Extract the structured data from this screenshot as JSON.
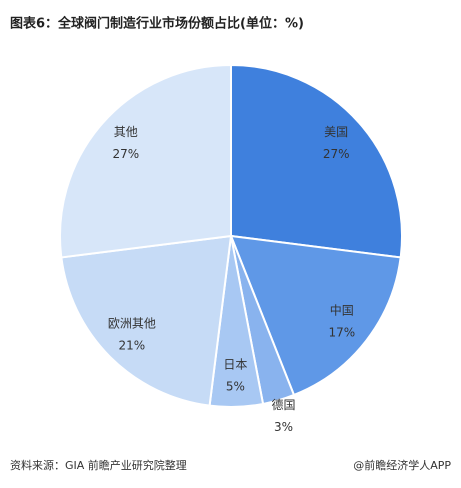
{
  "chart_data": {
    "type": "pie",
    "title": "图表6：全球阀门制造行业市场份额占比(单位：%)",
    "categories": [
      "美国",
      "中国",
      "德国",
      "日本",
      "欧洲其他",
      "其他"
    ],
    "values": [
      27,
      17,
      3,
      5,
      21,
      27
    ],
    "value_labels": [
      "27%",
      "17%",
      "3%",
      "5%",
      "21%",
      "27%"
    ],
    "colors": [
      "#3f80dd",
      "#5f98e7",
      "#89b3ee",
      "#a8c8f3",
      "#c6dbf6",
      "#d7e6f9"
    ],
    "source": "资料来源：GIA 前瞻产业研究院整理",
    "credit": "@前瞻经济学人APP"
  }
}
